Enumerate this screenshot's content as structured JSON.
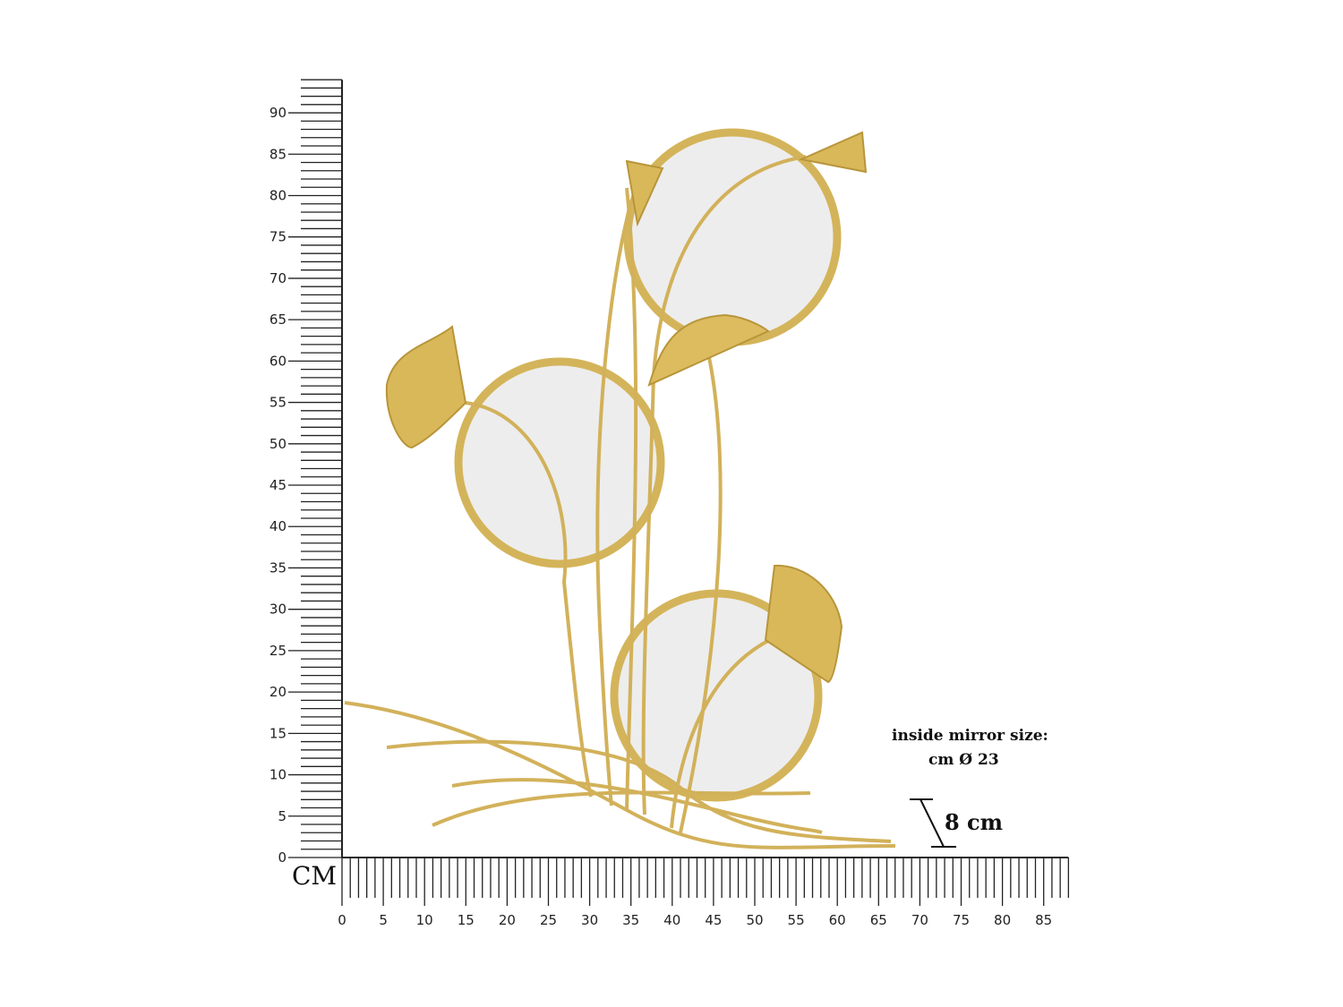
{
  "unit_label": "CM",
  "vertical_ruler": {
    "labels": [
      "0",
      "5",
      "10",
      "15",
      "20",
      "25",
      "30",
      "35",
      "40",
      "45",
      "50",
      "55",
      "60",
      "65",
      "70",
      "75",
      "80",
      "85",
      "90"
    ],
    "max_cm": 94
  },
  "horizontal_ruler": {
    "labels": [
      "0",
      "5",
      "10",
      "15",
      "20",
      "25",
      "30",
      "35",
      "40",
      "45",
      "50",
      "55",
      "60",
      "65",
      "70",
      "75",
      "80",
      "85"
    ],
    "max_cm": 88
  },
  "annotations": {
    "mirror_size_line1": "inside mirror size:",
    "mirror_size_line2": "cm Ø 23",
    "depth": "8 cm"
  },
  "colors": {
    "gold": "#d4b45a",
    "gold_dark": "#b8953a",
    "mirror": "#ececec",
    "ruler": "#222222"
  }
}
